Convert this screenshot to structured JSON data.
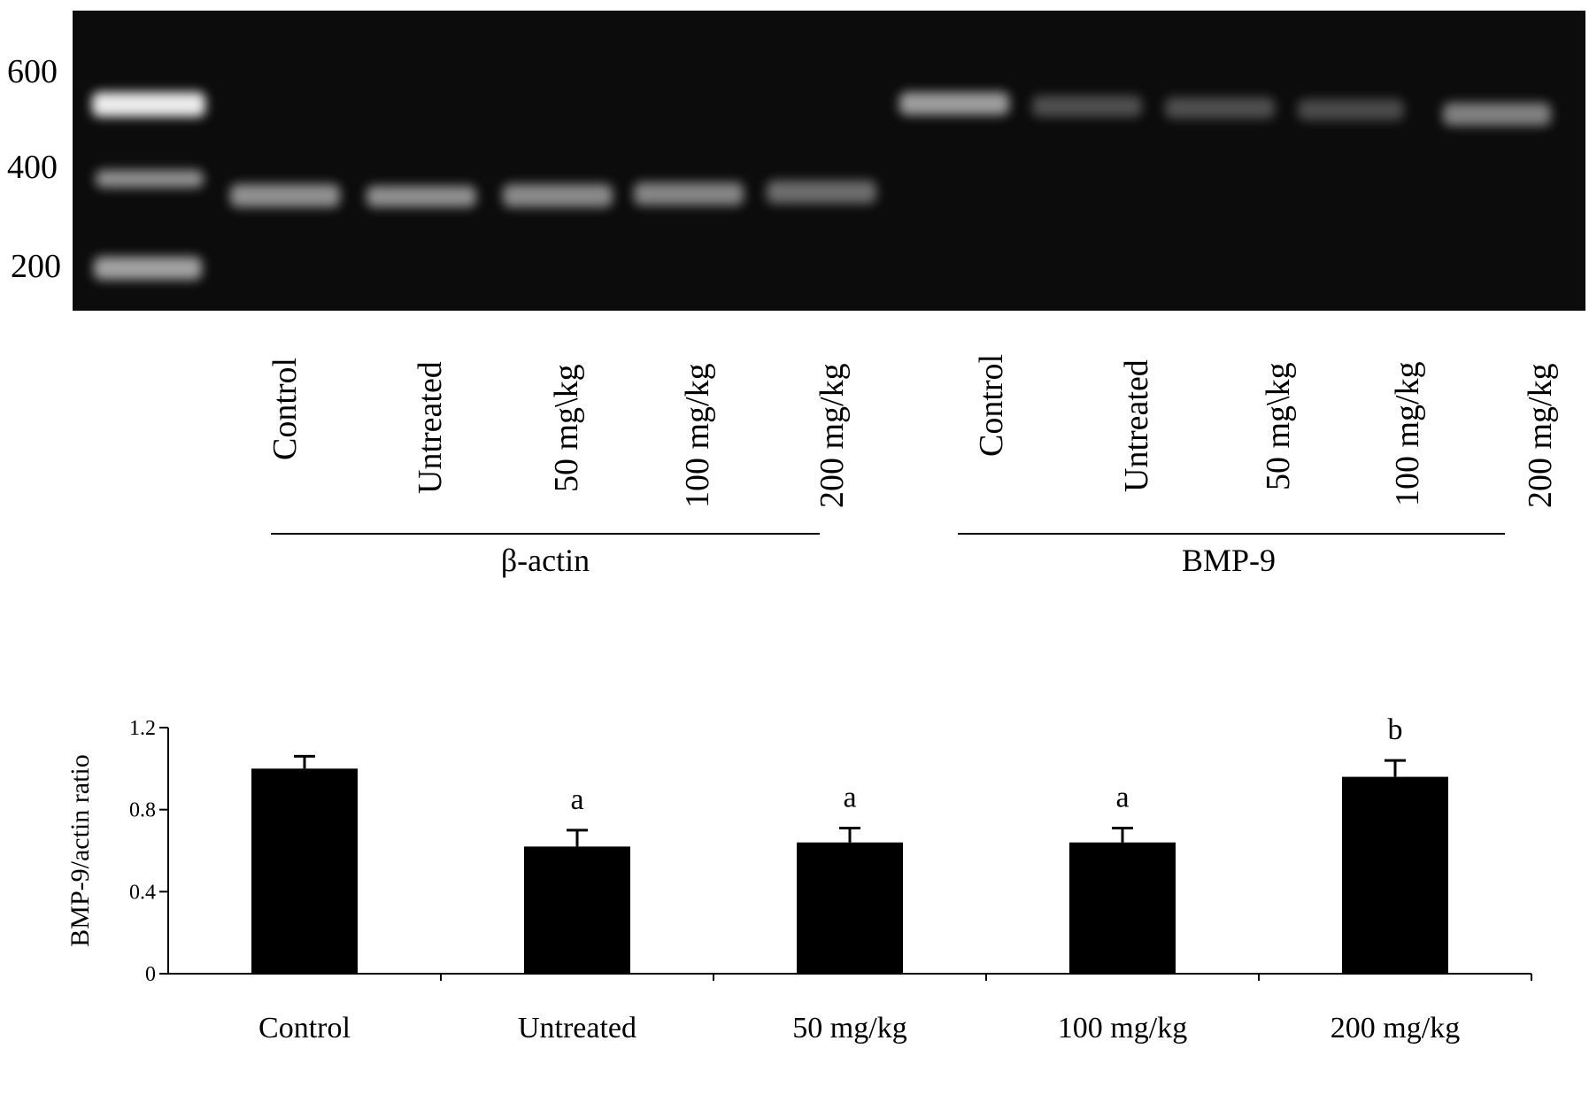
{
  "gel": {
    "marker_labels": [
      "600",
      "400",
      "200"
    ],
    "lanes": [
      "Control",
      "Untreated",
      "50 mg\\kg",
      "100 mg/kg",
      "200 mg/kg",
      "Control",
      "Untreated",
      "50 mg\\kg",
      "100 mg/kg",
      "200 mg/kg"
    ],
    "groups": [
      "β-actin",
      "BMP-9"
    ]
  },
  "chart_data": {
    "type": "bar",
    "categories": [
      "Control",
      "Untreated",
      "50 mg/kg",
      "100 mg/kg",
      "200 mg/kg"
    ],
    "values": [
      1.0,
      0.62,
      0.64,
      0.64,
      0.96
    ],
    "errors": [
      0.06,
      0.08,
      0.07,
      0.07,
      0.08
    ],
    "annotations": [
      "",
      "a",
      "a",
      "a",
      "b"
    ],
    "xlabel": "",
    "ylabel": "BMP-9/actin ratio",
    "ylim": [
      0,
      1.2
    ],
    "yticks": [
      "0",
      "0.4",
      "0.8",
      "1.2"
    ],
    "bar_color": "#000000",
    "grid": false
  }
}
